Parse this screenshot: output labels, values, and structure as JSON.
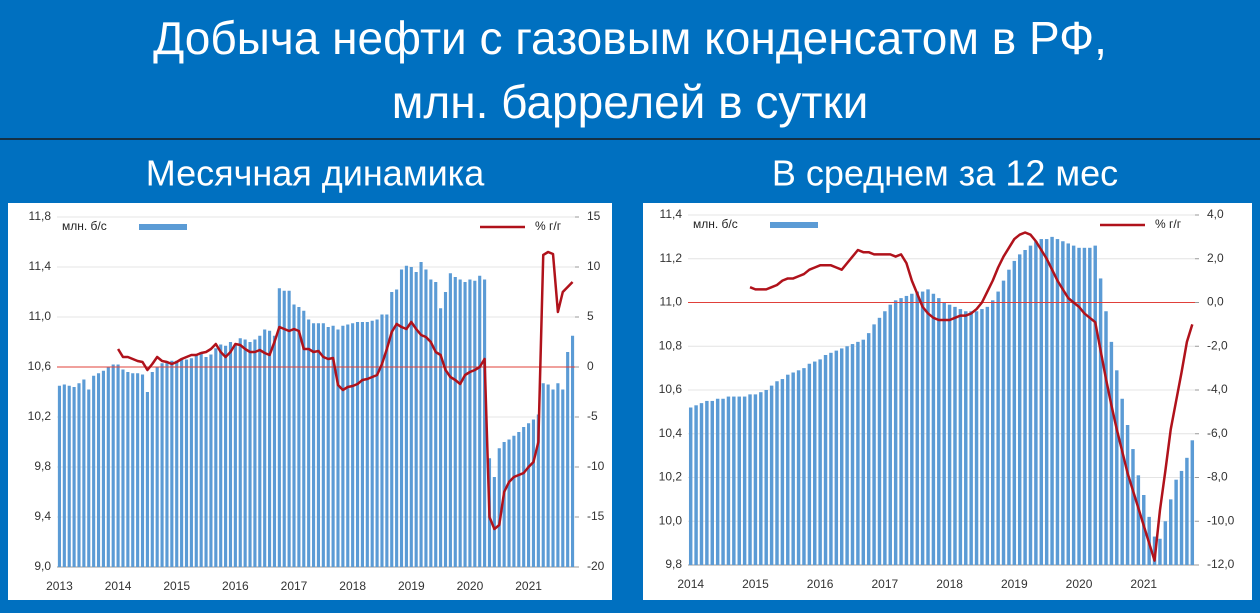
{
  "title": [
    "Добыча нефти с газовым конденсатом в РФ,",
    "млн. баррелей в сутки"
  ],
  "chart_data": [
    {
      "type": "combo",
      "title": "Месячная динамика",
      "grid": true,
      "categories": [
        "2013",
        null,
        null,
        null,
        null,
        null,
        null,
        null,
        null,
        null,
        null,
        null,
        "2014",
        null,
        null,
        null,
        null,
        null,
        null,
        null,
        null,
        null,
        null,
        null,
        "2015",
        null,
        null,
        null,
        null,
        null,
        null,
        null,
        null,
        null,
        null,
        null,
        "2016",
        null,
        null,
        null,
        null,
        null,
        null,
        null,
        null,
        null,
        null,
        null,
        "2017",
        null,
        null,
        null,
        null,
        null,
        null,
        null,
        null,
        null,
        null,
        null,
        "2018",
        null,
        null,
        null,
        null,
        null,
        null,
        null,
        null,
        null,
        null,
        null,
        "2019",
        null,
        null,
        null,
        null,
        null,
        null,
        null,
        null,
        null,
        null,
        null,
        "2020",
        null,
        null,
        null,
        null,
        null,
        null,
        null,
        null,
        null,
        null,
        null,
        "2021",
        null,
        null,
        null,
        null,
        null,
        null,
        null,
        null,
        null
      ],
      "ylim": [
        9.0,
        11.8
      ],
      "yticks": [
        {
          "value": 9.0,
          "label": "9,0"
        },
        {
          "value": 9.4,
          "label": "9,4"
        },
        {
          "value": 9.8,
          "label": "9,8"
        },
        {
          "value": 10.2,
          "label": "10,2"
        },
        {
          "value": 10.6,
          "label": "10,6"
        },
        {
          "value": 11.0,
          "label": "11,0"
        },
        {
          "value": 11.4,
          "label": "11,4"
        },
        {
          "value": 11.8,
          "label": "11,8"
        }
      ],
      "y2lim": [
        -20,
        15
      ],
      "y2ticks": [
        -20,
        -15,
        -10,
        -5,
        0,
        5,
        10,
        15
      ],
      "series": [
        {
          "name": "млн. б/с",
          "type": "bar",
          "color": "#5b9bd5",
          "values": [
            10.45,
            10.46,
            10.45,
            10.44,
            10.47,
            10.5,
            10.42,
            10.53,
            10.55,
            10.57,
            10.6,
            10.62,
            10.62,
            10.58,
            10.56,
            10.55,
            10.55,
            10.54,
            10.4,
            10.56,
            10.6,
            10.63,
            10.64,
            10.65,
            10.65,
            10.66,
            10.66,
            10.67,
            10.7,
            10.72,
            10.68,
            10.7,
            10.75,
            10.78,
            10.77,
            10.8,
            10.78,
            10.83,
            10.82,
            10.8,
            10.82,
            10.85,
            10.9,
            10.89,
            10.85,
            11.23,
            11.21,
            11.21,
            11.1,
            11.08,
            11.05,
            10.98,
            10.95,
            10.95,
            10.95,
            10.92,
            10.93,
            10.9,
            10.93,
            10.94,
            10.95,
            10.96,
            10.96,
            10.96,
            10.97,
            10.98,
            11.02,
            11.02,
            11.2,
            11.22,
            11.38,
            11.41,
            11.4,
            11.36,
            11.44,
            11.38,
            11.3,
            11.28,
            11.07,
            11.2,
            11.35,
            11.32,
            11.3,
            11.28,
            11.3,
            11.29,
            11.33,
            11.3,
            9.87,
            9.72,
            9.95,
            10.0,
            10.02,
            10.05,
            10.08,
            10.12,
            10.15,
            10.18,
            10.22,
            10.47,
            10.46,
            10.42,
            10.47,
            10.42,
            10.72,
            10.85
          ]
        },
        {
          "name": "% г/г",
          "type": "line",
          "axis": "y2",
          "color": "#b0121b",
          "values": [
            null,
            null,
            null,
            null,
            null,
            null,
            null,
            null,
            null,
            null,
            null,
            null,
            1.8,
            1.0,
            1.0,
            0.8,
            0.6,
            0.5,
            -0.3,
            0.3,
            1.0,
            0.6,
            0.5,
            0.3,
            0.5,
            0.8,
            1.0,
            1.2,
            1.2,
            1.4,
            1.5,
            1.8,
            2.3,
            1.5,
            1.0,
            1.5,
            2.3,
            2.2,
            1.8,
            1.5,
            1.5,
            1.7,
            1.4,
            1.2,
            2.5,
            4.0,
            3.8,
            3.6,
            3.8,
            3.6,
            1.8,
            1.8,
            1.5,
            1.6,
            1.0,
            0.8,
            0.9,
            -1.8,
            -2.3,
            -2.0,
            -1.9,
            -1.7,
            -1.3,
            -1.2,
            -1.0,
            -0.8,
            0.3,
            1.8,
            3.5,
            4.3,
            4.0,
            3.8,
            4.5,
            3.8,
            3.2,
            3.0,
            2.5,
            1.5,
            1.2,
            -0.3,
            -1.0,
            -1.3,
            -1.7,
            -0.8,
            -0.5,
            -0.3,
            0.0,
            0.8,
            -15.0,
            -16.2,
            -15.8,
            -12.5,
            -11.5,
            -11.0,
            -10.8,
            -10.6,
            -10.0,
            -9.5,
            -7.5,
            11.2,
            11.5,
            11.3,
            5.5,
            7.5,
            8.0,
            8.5
          ]
        }
      ]
    },
    {
      "type": "combo",
      "title": "В среднем за 12 мес",
      "grid": true,
      "categories": [
        "2014",
        null,
        null,
        null,
        null,
        null,
        null,
        null,
        null,
        null,
        null,
        null,
        "2015",
        null,
        null,
        null,
        null,
        null,
        null,
        null,
        null,
        null,
        null,
        null,
        "2016",
        null,
        null,
        null,
        null,
        null,
        null,
        null,
        null,
        null,
        null,
        null,
        "2017",
        null,
        null,
        null,
        null,
        null,
        null,
        null,
        null,
        null,
        null,
        null,
        "2018",
        null,
        null,
        null,
        null,
        null,
        null,
        null,
        null,
        null,
        null,
        null,
        "2019",
        null,
        null,
        null,
        null,
        null,
        null,
        null,
        null,
        null,
        null,
        null,
        "2020",
        null,
        null,
        null,
        null,
        null,
        null,
        null,
        null,
        null,
        null,
        null,
        "2021",
        null,
        null,
        null,
        null,
        null,
        null,
        null,
        null,
        null
      ],
      "ylim": [
        9.8,
        11.4
      ],
      "yticks": [
        {
          "value": 9.8,
          "label": "9,8"
        },
        {
          "value": 10.0,
          "label": "10,0"
        },
        {
          "value": 10.2,
          "label": "10,2"
        },
        {
          "value": 10.4,
          "label": "10,4"
        },
        {
          "value": 10.6,
          "label": "10,6"
        },
        {
          "value": 10.8,
          "label": "10,8"
        },
        {
          "value": 11.0,
          "label": "11,0"
        },
        {
          "value": 11.2,
          "label": "11,2"
        },
        {
          "value": 11.4,
          "label": "11,4"
        }
      ],
      "y2lim": [
        -12,
        4
      ],
      "y2ticks": [
        {
          "value": -12,
          "label": "-12,0"
        },
        {
          "value": -10,
          "label": "-10,0"
        },
        {
          "value": -8,
          "label": "-8,0"
        },
        {
          "value": -6,
          "label": "-6,0"
        },
        {
          "value": -4,
          "label": "-4,0"
        },
        {
          "value": -2,
          "label": "-2,0"
        },
        {
          "value": 0,
          "label": "0,0"
        },
        {
          "value": 2,
          "label": "2,0"
        },
        {
          "value": 4,
          "label": "4,0"
        }
      ],
      "series": [
        {
          "name": "млн. б/с",
          "type": "bar",
          "color": "#5b9bd5",
          "values": [
            10.52,
            10.53,
            10.54,
            10.55,
            10.55,
            10.56,
            10.56,
            10.57,
            10.57,
            10.57,
            10.57,
            10.58,
            10.58,
            10.59,
            10.6,
            10.62,
            10.64,
            10.65,
            10.67,
            10.68,
            10.69,
            10.7,
            10.72,
            10.73,
            10.74,
            10.76,
            10.77,
            10.78,
            10.79,
            10.8,
            10.81,
            10.82,
            10.83,
            10.86,
            10.9,
            10.93,
            10.96,
            10.99,
            11.01,
            11.02,
            11.03,
            11.04,
            11.05,
            11.05,
            11.06,
            11.04,
            11.02,
            11.0,
            10.99,
            10.98,
            10.97,
            10.96,
            10.96,
            10.96,
            10.97,
            10.98,
            11.01,
            11.05,
            11.1,
            11.15,
            11.19,
            11.22,
            11.24,
            11.26,
            11.28,
            11.29,
            11.29,
            11.3,
            11.29,
            11.28,
            11.27,
            11.26,
            11.25,
            11.25,
            11.25,
            11.26,
            11.11,
            10.96,
            10.82,
            10.69,
            10.56,
            10.44,
            10.33,
            10.21,
            10.12,
            10.02,
            9.93,
            9.92,
            10.0,
            10.1,
            10.19,
            10.23,
            10.29,
            10.37
          ]
        },
        {
          "name": "% г/г",
          "type": "line",
          "axis": "y2",
          "color": "#b0121b",
          "values": [
            null,
            null,
            null,
            null,
            null,
            null,
            null,
            null,
            null,
            null,
            null,
            0.7,
            0.6,
            0.6,
            0.6,
            0.7,
            0.8,
            1.0,
            1.1,
            1.1,
            1.2,
            1.3,
            1.5,
            1.6,
            1.7,
            1.7,
            1.7,
            1.6,
            1.5,
            1.8,
            2.1,
            2.4,
            2.3,
            2.3,
            2.2,
            2.2,
            2.2,
            2.2,
            2.1,
            2.2,
            1.8,
            1.0,
            0.4,
            -0.2,
            -0.5,
            -0.7,
            -0.8,
            -0.8,
            -0.8,
            -0.7,
            -0.6,
            -0.6,
            -0.5,
            -0.3,
            0.0,
            0.5,
            1.0,
            1.6,
            2.1,
            2.5,
            2.9,
            3.1,
            3.2,
            3.1,
            2.8,
            2.4,
            2.0,
            1.5,
            1.0,
            0.6,
            0.2,
            0.0,
            -0.2,
            -0.5,
            -0.7,
            -0.9,
            -2.2,
            -3.5,
            -4.7,
            -5.8,
            -6.8,
            -7.8,
            -8.6,
            -9.4,
            -10.2,
            -11.0,
            -11.8,
            -9.5,
            -7.7,
            -5.8,
            -4.5,
            -3.2,
            -1.8,
            -1.0
          ]
        }
      ]
    }
  ]
}
